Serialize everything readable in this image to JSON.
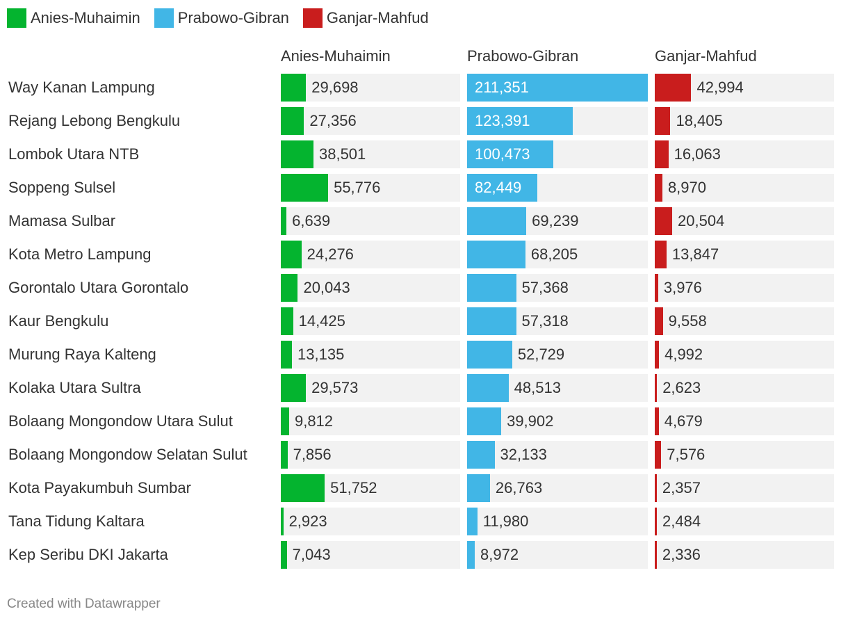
{
  "chart_data": {
    "type": "bar",
    "legend_position": "top-left",
    "series": [
      {
        "name": "Anies-Muhaimin",
        "color": "#04b42f",
        "values": [
          29698,
          27356,
          38501,
          55776,
          6639,
          24276,
          20043,
          14425,
          13135,
          29573,
          9812,
          7856,
          51752,
          2923,
          7043
        ],
        "labels": [
          "29,698",
          "27,356",
          "38,501",
          "55,776",
          "6,639",
          "24,276",
          "20,043",
          "14,425",
          "13,135",
          "29,573",
          "9,812",
          "7,856",
          "51,752",
          "2,923",
          "7,043"
        ]
      },
      {
        "name": "Prabowo-Gibran",
        "color": "#41b6e6",
        "values": [
          211351,
          123391,
          100473,
          82449,
          69239,
          68205,
          57368,
          57318,
          52729,
          48513,
          39902,
          32133,
          26763,
          11980,
          8972
        ],
        "labels": [
          "211,351",
          "123,391",
          "100,473",
          "82,449",
          "69,239",
          "68,205",
          "57,368",
          "57,318",
          "52,729",
          "48,513",
          "39,902",
          "32,133",
          "26,763",
          "11,980",
          "8,972"
        ]
      },
      {
        "name": "Ganjar-Mahfud",
        "color": "#c91d1d",
        "values": [
          42994,
          18405,
          16063,
          8970,
          20504,
          13847,
          3976,
          9558,
          4992,
          2623,
          4679,
          7576,
          2357,
          2484,
          2336
        ],
        "labels": [
          "42,994",
          "18,405",
          "16,063",
          "8,970",
          "20,504",
          "13,847",
          "3,976",
          "9,558",
          "4,992",
          "2,623",
          "4,679",
          "7,576",
          "2,357",
          "2,484",
          "2,336"
        ]
      }
    ],
    "categories": [
      "Way Kanan Lampung",
      "Rejang Lebong Bengkulu",
      "Lombok Utara NTB",
      "Soppeng Sulsel",
      "Mamasa Sulbar",
      "Kota Metro Lampung",
      "Gorontalo Utara Gorontalo",
      "Kaur Bengkulu",
      "Murung Raya Kalteng",
      "Kolaka Utara Sultra",
      "Bolaang Mongondow Utara Sulut",
      "Bolaang Mongondow Selatan Sulut",
      "Kota Payakumbuh Sumbar",
      "Tana Tidung Kaltara",
      "Kep Seribu DKI Jakarta"
    ],
    "xlim": [
      0,
      211351
    ]
  },
  "footer": {
    "credit": "Created with Datawrapper"
  }
}
